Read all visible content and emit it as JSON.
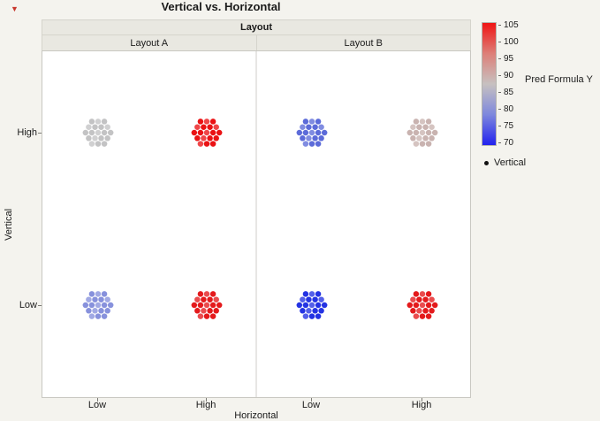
{
  "icons": {
    "red_triangle_menu": "▼"
  },
  "chart": {
    "title": "Vertical vs. Horizontal",
    "group_label": "Layout",
    "panels": [
      {
        "label": "Layout A",
        "x_ticks": [
          "Low",
          "High"
        ]
      },
      {
        "label": "Layout B",
        "x_ticks": [
          "Low",
          "High"
        ]
      }
    ],
    "x_axis": {
      "label": "Horizontal"
    },
    "y_axis": {
      "label": "Vertical",
      "ticks": [
        "High",
        "Low"
      ]
    }
  },
  "legend": {
    "gradient_title": "Pred Formula Y",
    "gradient_ticks": [
      "105",
      "100",
      "95",
      "90",
      "85",
      "80",
      "75",
      "70"
    ],
    "marker_legend_label": "Vertical"
  },
  "chart_data": {
    "type": "scatter",
    "title": "Vertical vs. Horizontal",
    "facet_variable": "Layout",
    "x_variable": "Horizontal",
    "y_variable": "Vertical",
    "color_scale": {
      "label": "Pred Formula Y",
      "min": 70,
      "max": 105,
      "low_color": "#2222ee",
      "mid_color": "#c7c1c0",
      "high_color": "#f01414"
    },
    "clusters": [
      {
        "layout": "Layout A",
        "horizontal": "Low",
        "vertical": "High",
        "pred_formula_y": 89,
        "color": "#c3c3c4",
        "n_points": 19
      },
      {
        "layout": "Layout A",
        "horizontal": "High",
        "vertical": "High",
        "pred_formula_y": 103,
        "color": "#ea1214",
        "n_points": 19
      },
      {
        "layout": "Layout B",
        "horizontal": "Low",
        "vertical": "High",
        "pred_formula_y": 79,
        "color": "#5c6bd9",
        "n_points": 19
      },
      {
        "layout": "Layout B",
        "horizontal": "High",
        "vertical": "High",
        "pred_formula_y": 89,
        "color": "#c9b3b0",
        "n_points": 19
      },
      {
        "layout": "Layout A",
        "horizontal": "Low",
        "vertical": "Low",
        "pred_formula_y": 81,
        "color": "#8791dc",
        "n_points": 19
      },
      {
        "layout": "Layout A",
        "horizontal": "High",
        "vertical": "Low",
        "pred_formula_y": 101,
        "color": "#e41a1c",
        "n_points": 19
      },
      {
        "layout": "Layout B",
        "horizontal": "Low",
        "vertical": "Low",
        "pred_formula_y": 72,
        "color": "#2433e3",
        "n_points": 19
      },
      {
        "layout": "Layout B",
        "horizontal": "High",
        "vertical": "Low",
        "pred_formula_y": 100,
        "color": "#e41a1c",
        "n_points": 19
      }
    ]
  }
}
